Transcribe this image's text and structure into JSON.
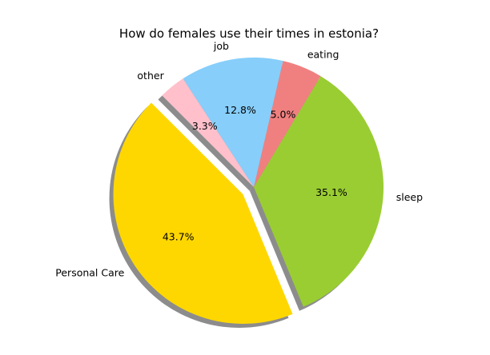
{
  "chart_data": {
    "type": "pie",
    "title": "How do females use their times in estonia?",
    "shadow": true,
    "start_angle_deg": 135,
    "direction": "counterclockwise",
    "slices": [
      {
        "label": "Personal Care",
        "pct_label": "43.7%",
        "value": 43.7,
        "color": "#FFD700",
        "explode": 0.1
      },
      {
        "label": "sleep",
        "pct_label": "35.1%",
        "value": 35.1,
        "color": "#9ACD32",
        "explode": 0
      },
      {
        "label": "eating",
        "pct_label": "5.0%",
        "value": 5.0,
        "color": "#F08080",
        "explode": 0
      },
      {
        "label": "job",
        "pct_label": "12.8%",
        "value": 12.8,
        "color": "#87CEFA",
        "explode": 0
      },
      {
        "label": "other",
        "pct_label": "3.3%",
        "value": 3.3,
        "color": "#FFC0CB",
        "explode": 0
      }
    ]
  }
}
